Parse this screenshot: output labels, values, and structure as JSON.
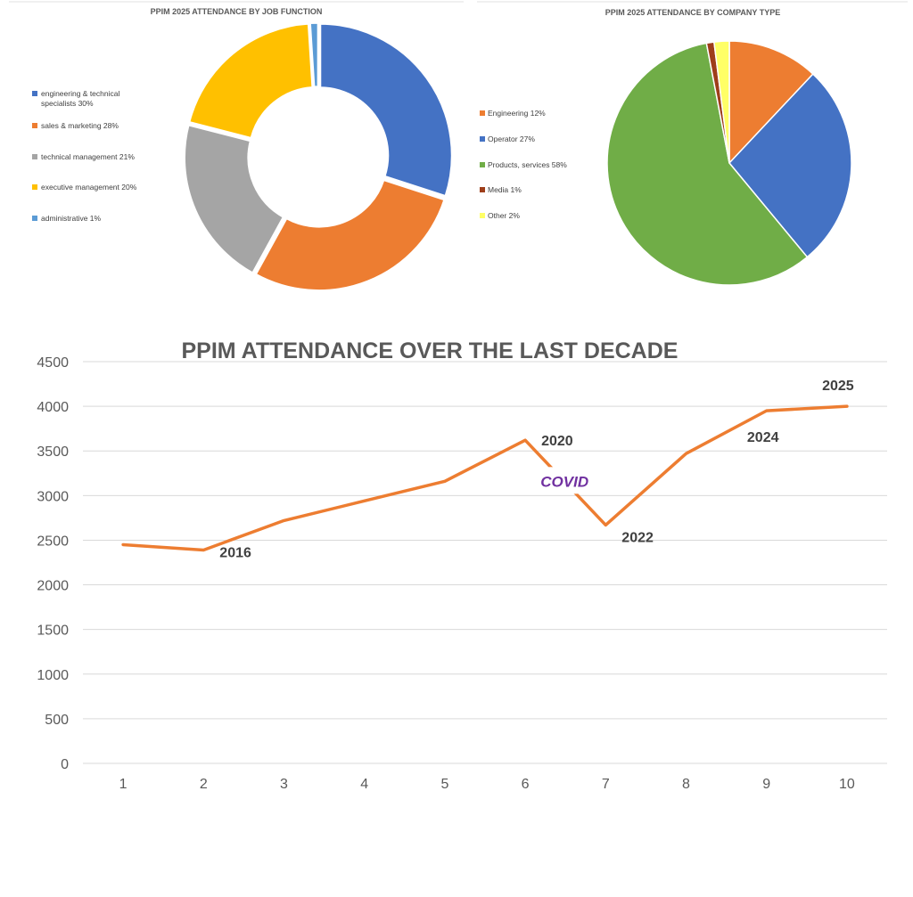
{
  "chart_data": [
    {
      "type": "pie",
      "variant": "doughnut",
      "title": "PPIM 2025 ATTENDANCE BY JOB FUNCTION",
      "legend_position": "left",
      "slices": [
        {
          "label": "engineering & technical specialists 30%",
          "value": 30,
          "color": "#4472c4"
        },
        {
          "label": "sales & marketing 28%",
          "value": 28,
          "color": "#ed7d31"
        },
        {
          "label": "technical management 21%",
          "value": 21,
          "color": "#a5a5a5"
        },
        {
          "label": "executive management 20%",
          "value": 20,
          "color": "#ffc000"
        },
        {
          "label": "administrative 1%",
          "value": 1,
          "color": "#5b9bd5"
        }
      ]
    },
    {
      "type": "pie",
      "title": "PPIM 2025 ATTENDANCE BY COMPANY TYPE",
      "legend_position": "left",
      "slices": [
        {
          "label": "Engineering 12%",
          "value": 12,
          "color": "#ed7d31"
        },
        {
          "label": "Operator 27%",
          "value": 27,
          "color": "#4472c4"
        },
        {
          "label": "Products, services 58%",
          "value": 58,
          "color": "#70ad47"
        },
        {
          "label": "Media 1%",
          "value": 1,
          "color": "#9e3e1a"
        },
        {
          "label": "Other 2%",
          "value": 2,
          "color": "#ffff66"
        }
      ]
    },
    {
      "type": "line",
      "title": "PPIM ATTENDANCE OVER THE LAST DECADE",
      "x": [
        1,
        2,
        3,
        4,
        5,
        6,
        7,
        8,
        9,
        10
      ],
      "y": [
        2450,
        2390,
        2720,
        2940,
        3160,
        3620,
        2670,
        3470,
        3950,
        4000
      ],
      "ylim": [
        0,
        4500
      ],
      "yticks": [
        0,
        500,
        1000,
        1500,
        2000,
        2500,
        3000,
        3500,
        4000,
        4500
      ],
      "grid": true,
      "line_color": "#ed7d31",
      "annotations": [
        {
          "text": "2016",
          "x": 2,
          "y": 2390
        },
        {
          "text": "2020",
          "x": 6,
          "y": 3620
        },
        {
          "text": "2022",
          "x": 7,
          "y": 2670
        },
        {
          "text": "2024",
          "x": 9,
          "y": 3950
        },
        {
          "text": "2025",
          "x": 10,
          "y": 4000
        },
        {
          "text": "COVID",
          "x": 6.5,
          "y": 3100,
          "color": "#7030a0"
        }
      ]
    }
  ]
}
